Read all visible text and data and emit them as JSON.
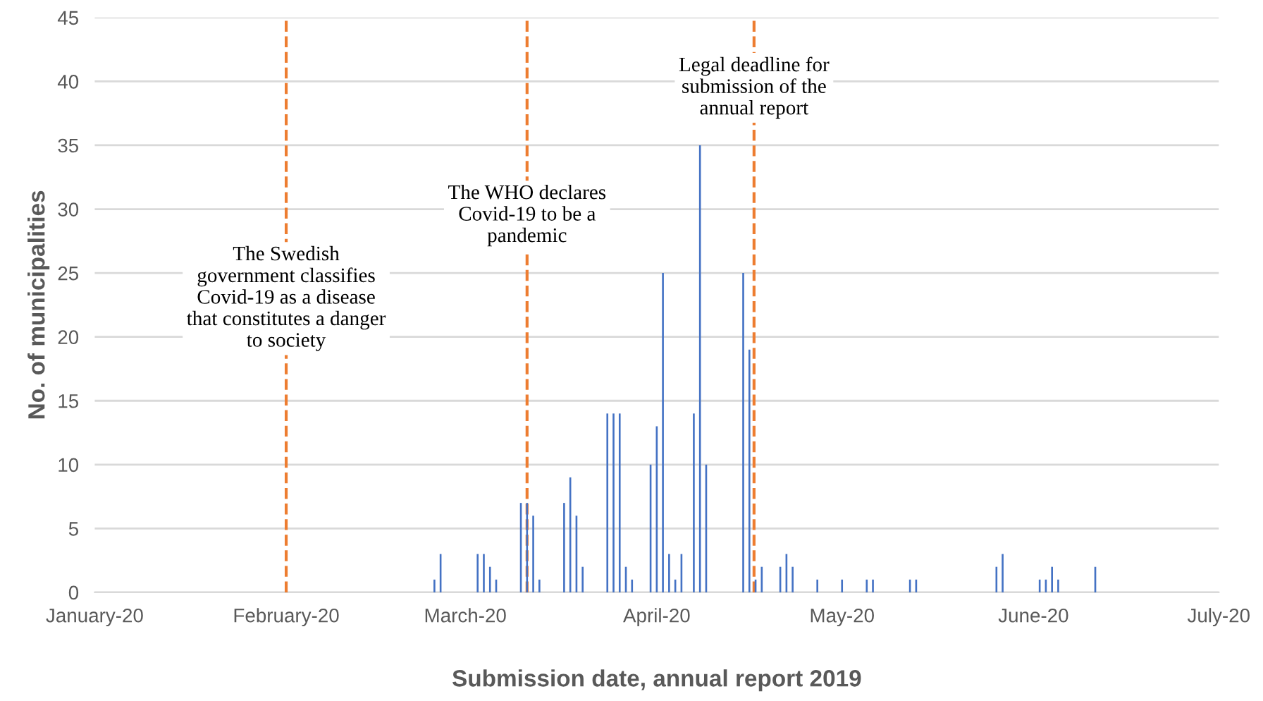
{
  "chart_data": {
    "type": "bar",
    "xlabel": "Submission date, annual report 2019",
    "ylabel": "No. of municipalities",
    "x": [
      "2020-02-25",
      "2020-02-26",
      "2020-03-03",
      "2020-03-04",
      "2020-03-05",
      "2020-03-06",
      "2020-03-10",
      "2020-03-11",
      "2020-03-12",
      "2020-03-13",
      "2020-03-17",
      "2020-03-18",
      "2020-03-19",
      "2020-03-20",
      "2020-03-24",
      "2020-03-25",
      "2020-03-26",
      "2020-03-27",
      "2020-03-28",
      "2020-03-31",
      "2020-04-01",
      "2020-04-02",
      "2020-04-03",
      "2020-04-04",
      "2020-04-05",
      "2020-04-07",
      "2020-04-08",
      "2020-04-09",
      "2020-04-15",
      "2020-04-16",
      "2020-04-17",
      "2020-04-18",
      "2020-04-21",
      "2020-04-22",
      "2020-04-23",
      "2020-04-27",
      "2020-05-01",
      "2020-05-05",
      "2020-05-06",
      "2020-05-12",
      "2020-05-13",
      "2020-05-26",
      "2020-05-27",
      "2020-06-02",
      "2020-06-03",
      "2020-06-04",
      "2020-06-05",
      "2020-06-11"
    ],
    "values": [
      1,
      3,
      3,
      3,
      2,
      1,
      7,
      7,
      6,
      1,
      7,
      9,
      6,
      2,
      14,
      14,
      14,
      2,
      1,
      10,
      13,
      25,
      3,
      1,
      3,
      14,
      35,
      10,
      25,
      19,
      1,
      2,
      2,
      3,
      2,
      1,
      1,
      1,
      1,
      1,
      1,
      2,
      3,
      1,
      1,
      2,
      1,
      2
    ],
    "color": "#4472c4",
    "xlim": [
      "2020-01-01",
      "2020-07-01"
    ],
    "xticks": [
      {
        "value": "2020-01-01",
        "label": "January-20"
      },
      {
        "value": "2020-02-01",
        "label": "February-20"
      },
      {
        "value": "2020-03-01",
        "label": "March-20"
      },
      {
        "value": "2020-04-01",
        "label": "April-20"
      },
      {
        "value": "2020-05-01",
        "label": "May-20"
      },
      {
        "value": "2020-06-01",
        "label": "June-20"
      },
      {
        "value": "2020-07-01",
        "label": "July-20"
      }
    ],
    "ylim": [
      0,
      45
    ],
    "yticks": [
      0,
      5,
      10,
      15,
      20,
      25,
      30,
      35,
      40,
      45
    ],
    "grid": "y",
    "ref_lines": [
      {
        "axis": "x",
        "value": "2020-02-01",
        "label": "The Swedish\ngovernment classifies\nCovid-19 as a disease\nthat constitutes a danger\nto society",
        "color": "#ed7d31",
        "line_style": "dashed"
      },
      {
        "axis": "x",
        "value": "2020-03-11",
        "label": "The WHO declares\nCovid-19 to be a\npandemic",
        "color": "#ed7d31",
        "line_style": "dashed"
      },
      {
        "axis": "x",
        "value": "2020-04-16T18:00",
        "label": "Legal deadline for\nsubmission of the\nannual report",
        "color": "#ed7d31",
        "line_style": "dashed"
      }
    ]
  }
}
